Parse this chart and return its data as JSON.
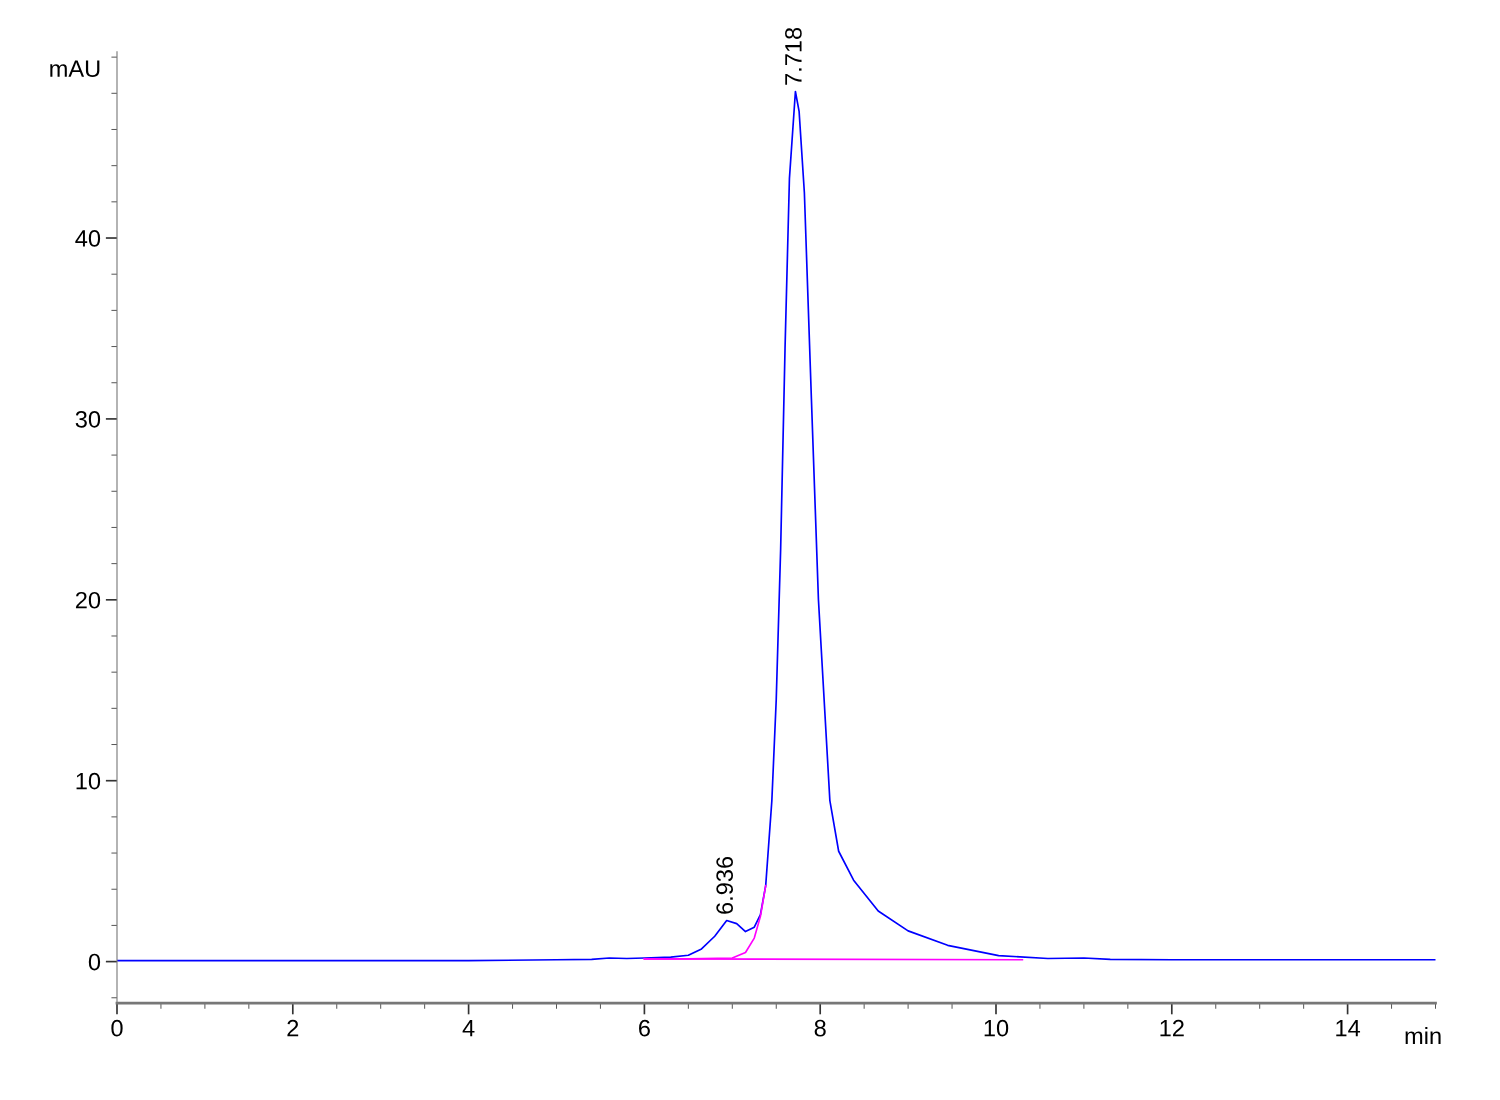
{
  "chart_data": {
    "type": "line",
    "xlabel": "min",
    "ylabel": "mAU",
    "xlim": [
      0,
      15
    ],
    "ylim": [
      -2.3,
      50.3
    ],
    "xticks": [
      0,
      2,
      4,
      6,
      8,
      10,
      12,
      14
    ],
    "yticks": [
      0,
      10,
      20,
      30,
      40
    ],
    "grid": false,
    "legend": false,
    "marker": "none",
    "line_style": "solid",
    "series": [
      {
        "color": "#0000ff",
        "x": [
          0,
          1.0,
          2.0,
          3.0,
          4.0,
          5.0,
          5.4,
          5.6,
          5.8,
          6.0,
          6.3,
          6.5,
          6.65,
          6.8,
          6.936,
          7.05,
          7.15,
          7.25,
          7.32,
          7.38,
          7.45,
          7.5,
          7.55,
          7.6,
          7.65,
          7.718,
          7.76,
          7.82,
          7.9,
          7.98,
          8.11,
          8.21,
          8.38,
          8.66,
          9.0,
          9.45,
          10.03,
          10.59,
          11.0,
          11.3,
          12.0,
          13.0,
          14.0,
          15.0
        ],
        "values": [
          0.05,
          0.05,
          0.05,
          0.05,
          0.05,
          0.1,
          0.12,
          0.2,
          0.17,
          0.2,
          0.25,
          0.35,
          0.7,
          1.4,
          2.27,
          2.1,
          1.66,
          1.9,
          2.6,
          4.2,
          8.9,
          14.5,
          22.8,
          33.9,
          43.3,
          48.1,
          47.0,
          42.5,
          31.1,
          20.0,
          8.9,
          6.1,
          4.5,
          2.8,
          1.7,
          0.9,
          0.33,
          0.17,
          0.2,
          0.12,
          0.1,
          0.1,
          0.1,
          0.1
        ]
      },
      {
        "color": "#ff00ff",
        "x": [
          6.0,
          6.5,
          7.0,
          7.15,
          7.25,
          7.32,
          7.38
        ],
        "values": [
          0.15,
          0.15,
          0.2,
          0.5,
          1.3,
          2.5,
          4.2
        ]
      },
      {
        "color": "#ff00ff",
        "x": [
          6.0,
          10.3
        ],
        "values": [
          0.15,
          0.1
        ]
      }
    ],
    "annotations": [
      {
        "text": "6.936",
        "x": 6.936,
        "y": 2.27
      },
      {
        "text": "7.718",
        "x": 7.718,
        "y": 48.1
      }
    ]
  }
}
